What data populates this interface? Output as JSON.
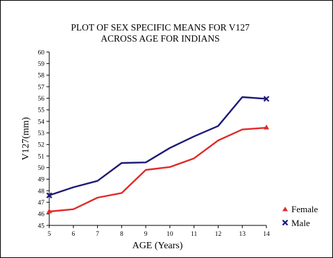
{
  "chart_data": {
    "type": "line",
    "title_lines": [
      "PLOT OF SEX SPECIFIC MEANS FOR V127",
      "ACROSS AGE FOR INDIANS"
    ],
    "xlabel": "AGE (Years)",
    "ylabel": "V127(mm)",
    "x": [
      5,
      6,
      7,
      8,
      9,
      10,
      11,
      12,
      13,
      14
    ],
    "xlim": [
      5,
      14
    ],
    "ylim": [
      45,
      60
    ],
    "yticks": [
      45,
      46,
      47,
      48,
      49,
      50,
      51,
      52,
      53,
      54,
      55,
      56,
      57,
      58,
      59,
      60
    ],
    "grid": false,
    "legend_position": "right",
    "series": [
      {
        "name": "Female",
        "color": "#e02a2a",
        "marker": "triangle",
        "values": [
          46.2,
          46.4,
          47.4,
          47.8,
          49.8,
          50.05,
          50.8,
          52.35,
          53.3,
          53.45
        ]
      },
      {
        "name": "Male",
        "color": "#1c1a78",
        "marker": "x",
        "values": [
          47.6,
          48.3,
          48.85,
          50.4,
          50.45,
          51.7,
          52.7,
          53.6,
          56.1,
          55.95
        ]
      }
    ]
  }
}
